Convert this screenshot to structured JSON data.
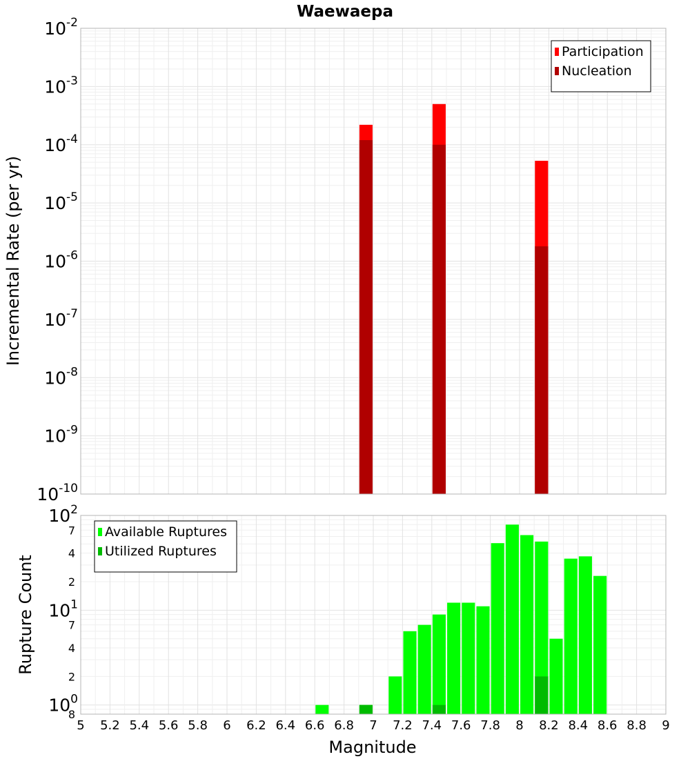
{
  "chart_data": [
    {
      "type": "bar",
      "title": "Waewaepa",
      "xlabel": "",
      "ylabel": "Incremental Rate (per yr)",
      "yscale": "log",
      "ylim": [
        1e-10,
        0.01
      ],
      "xlim": [
        5,
        9
      ],
      "grid": true,
      "legend_position": "top-right",
      "y_tick_labels": [
        {
          "value": 1e-10,
          "base": "10",
          "exp": "-10"
        },
        {
          "value": 1e-09,
          "base": "10",
          "exp": "-9"
        },
        {
          "value": 1e-08,
          "base": "10",
          "exp": "-8"
        },
        {
          "value": 1e-07,
          "base": "10",
          "exp": "-7"
        },
        {
          "value": 1e-06,
          "base": "10",
          "exp": "-6"
        },
        {
          "value": 1e-05,
          "base": "10",
          "exp": "-5"
        },
        {
          "value": 0.0001,
          "base": "10",
          "exp": "-4"
        },
        {
          "value": 0.001,
          "base": "10",
          "exp": "-3"
        },
        {
          "value": 0.01,
          "base": "10",
          "exp": "-2"
        }
      ],
      "bar_width": 0.09,
      "series": [
        {
          "name": "Participation",
          "color": "#ff0000",
          "x": [
            6.95,
            7.45,
            8.15
          ],
          "values": [
            0.00022,
            0.0005,
            5.3e-05
          ]
        },
        {
          "name": "Nucleation",
          "color": "#b00000",
          "x": [
            6.95,
            7.45,
            8.15
          ],
          "values": [
            0.00012,
            0.0001,
            1.8e-06
          ]
        }
      ]
    },
    {
      "type": "bar",
      "title": "",
      "xlabel": "Magnitude",
      "ylabel": "Rupture Count",
      "yscale": "log",
      "ylim": [
        0.8,
        100
      ],
      "xlim": [
        5,
        9
      ],
      "grid": true,
      "legend_position": "top-left",
      "x_ticks": [
        "5",
        "5.2",
        "5.4",
        "5.6",
        "5.8",
        "6",
        "6.2",
        "6.4",
        "6.6",
        "6.8",
        "7",
        "7.2",
        "7.4",
        "7.6",
        "7.8",
        "8",
        "8.2",
        "8.4",
        "8.6",
        "8.8",
        "9"
      ],
      "y_tick_labels": [
        {
          "value": 1,
          "base": "10",
          "exp": "0"
        },
        {
          "value": 10,
          "base": "10",
          "exp": "1"
        },
        {
          "value": 100,
          "base": "10",
          "exp": "2"
        }
      ],
      "y_minor_labels": [
        {
          "value": 0.8,
          "label": "8"
        },
        {
          "value": 2,
          "label": "2"
        },
        {
          "value": 4,
          "label": "4"
        },
        {
          "value": 7,
          "label": "7"
        },
        {
          "value": 20,
          "label": "2"
        },
        {
          "value": 40,
          "label": "4"
        },
        {
          "value": 70,
          "label": "7"
        }
      ],
      "bar_width": 0.09,
      "series": [
        {
          "name": "Available Ruptures",
          "color": "#00ff00",
          "x": [
            6.65,
            6.95,
            7.15,
            7.25,
            7.35,
            7.45,
            7.55,
            7.65,
            7.75,
            7.85,
            7.95,
            8.05,
            8.15,
            8.25,
            8.35,
            8.45,
            8.55
          ],
          "values": [
            1,
            1,
            2,
            6,
            7,
            9,
            12,
            12,
            11,
            51,
            80,
            62,
            53,
            5,
            35,
            37,
            23
          ]
        },
        {
          "name": "Utilized Ruptures",
          "color": "#00bb00",
          "x": [
            6.95,
            7.45,
            8.15
          ],
          "values": [
            1,
            1,
            2
          ]
        }
      ]
    }
  ]
}
